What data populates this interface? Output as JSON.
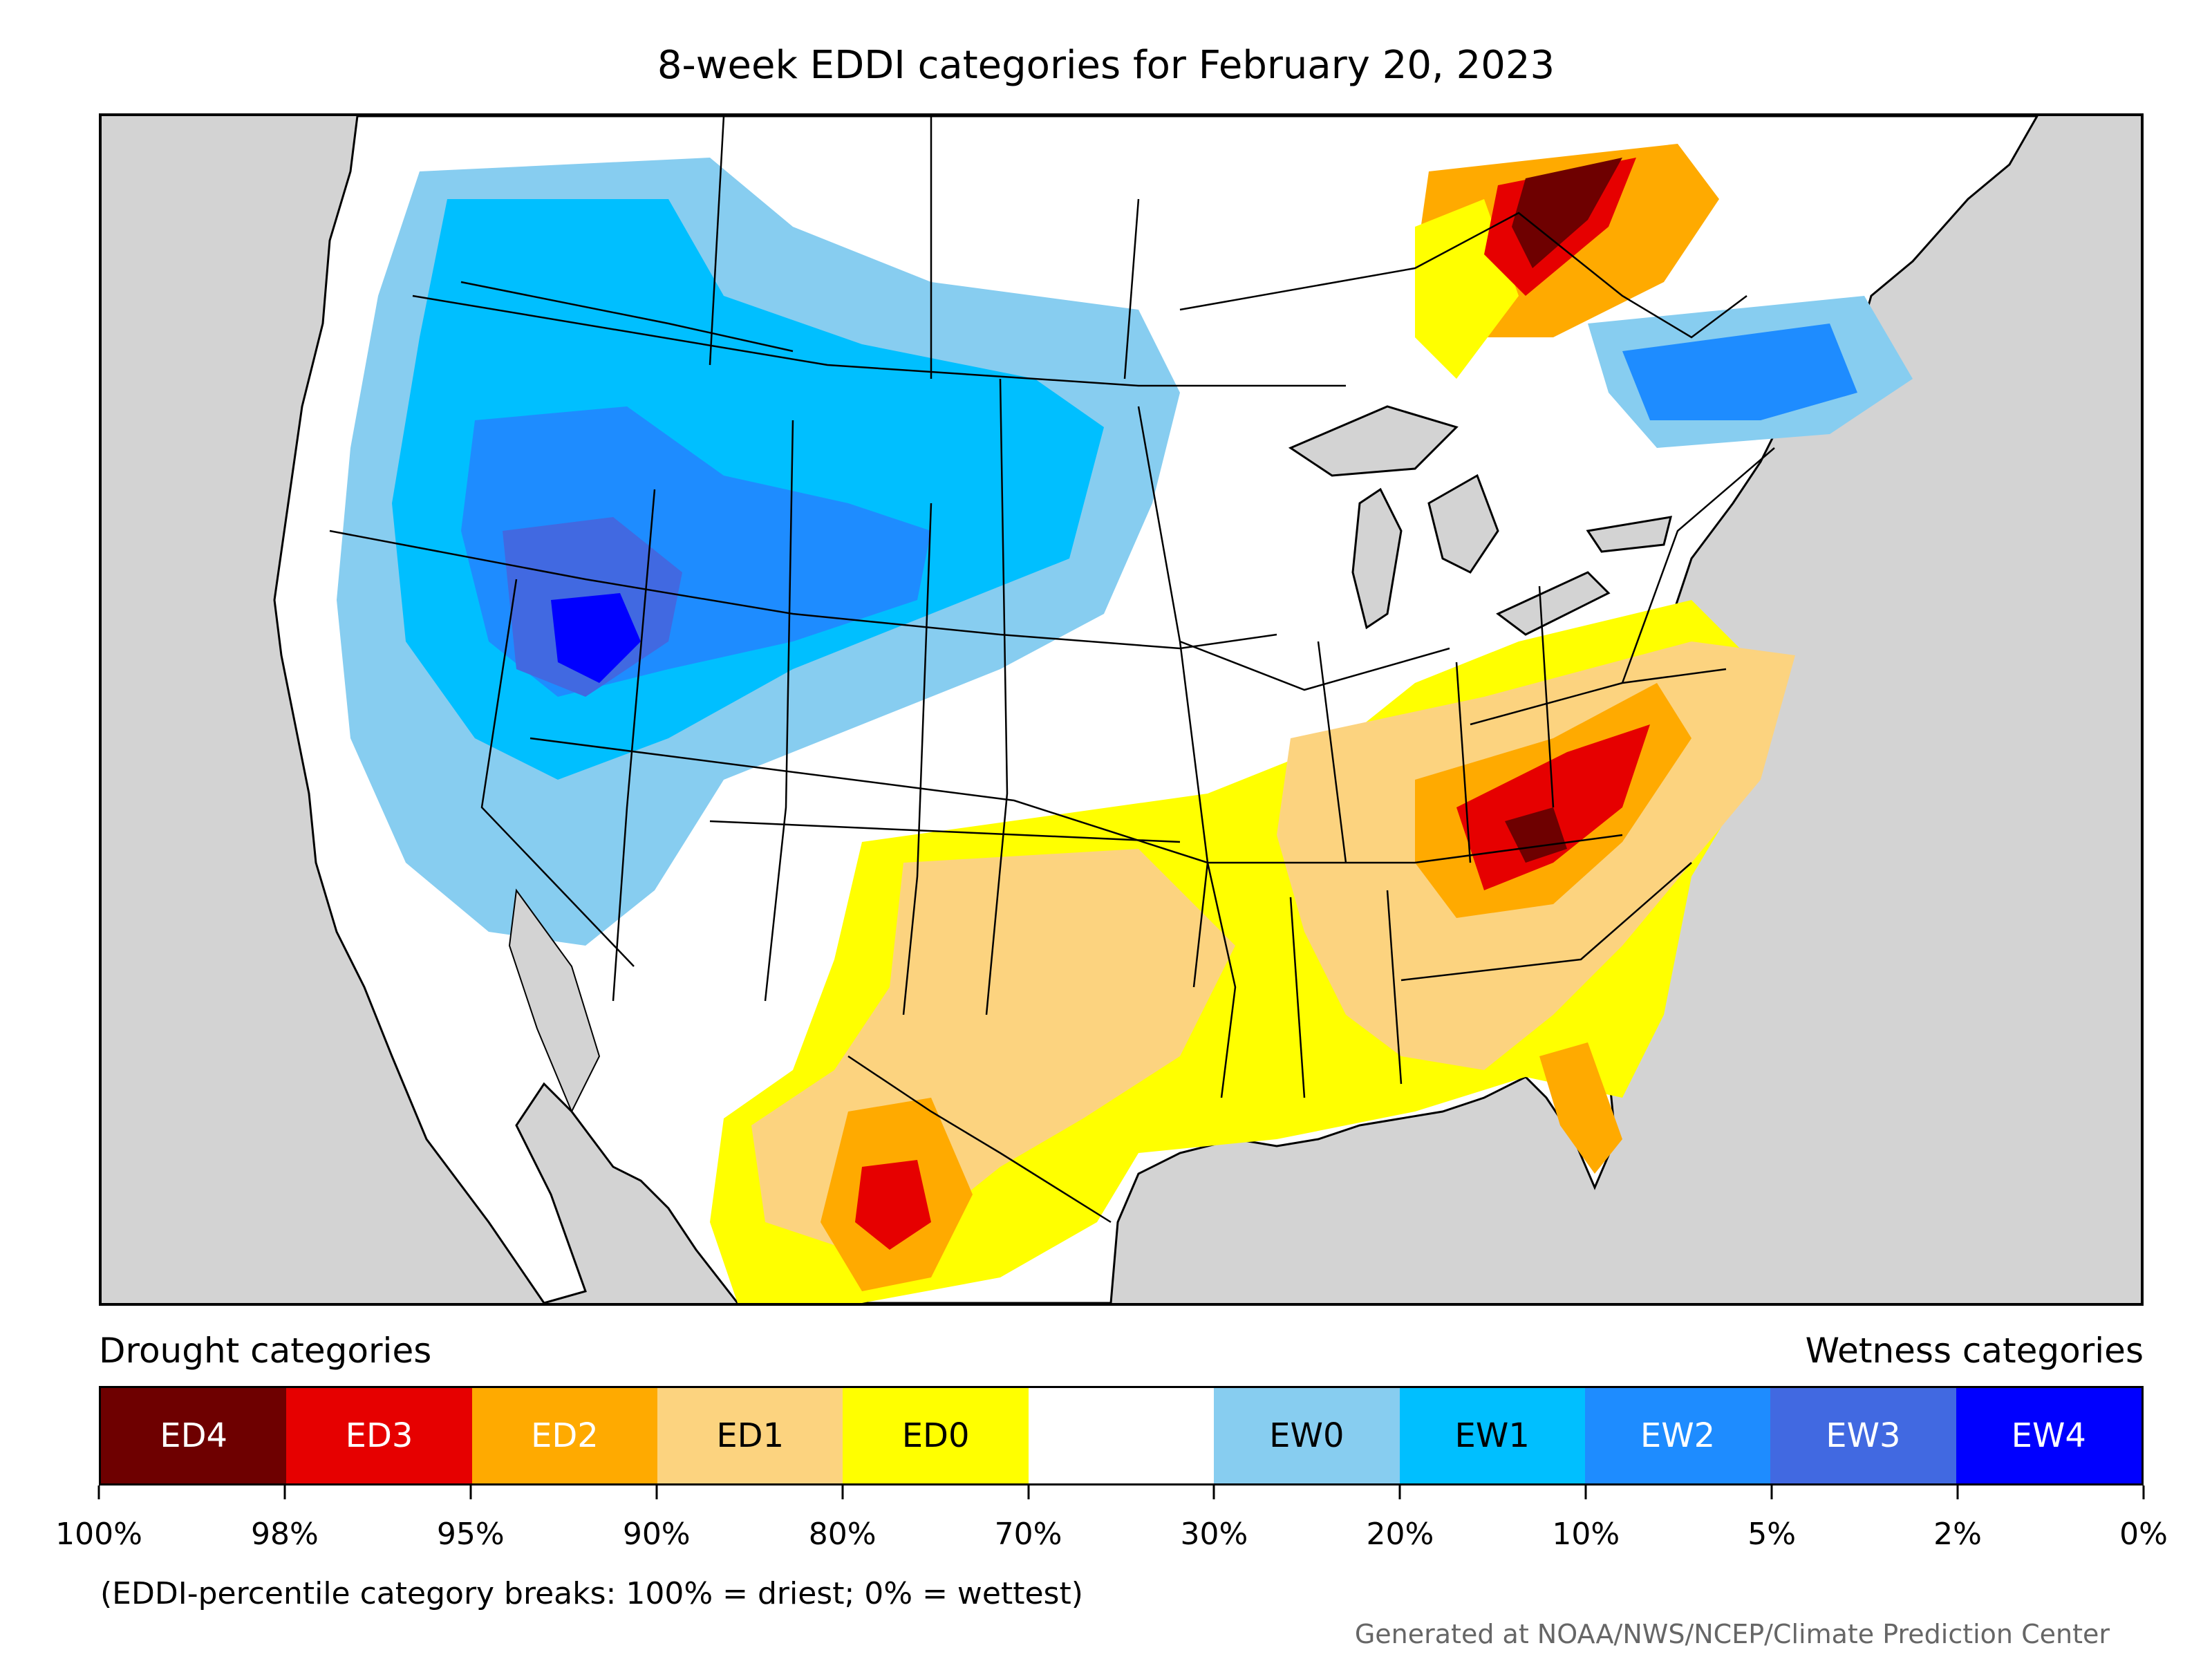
{
  "title": "8-week EDDI categories for February 20, 2023",
  "legend": {
    "drought_heading": "Drought categories",
    "wetness_heading": "Wetness categories",
    "categories": [
      {
        "label": "ED4",
        "color": "#6e0000",
        "text_color": "#ffffff"
      },
      {
        "label": "ED3",
        "color": "#e60000",
        "text_color": "#ffffff"
      },
      {
        "label": "ED2",
        "color": "#ffaa00",
        "text_color": "#ffffff"
      },
      {
        "label": "ED1",
        "color": "#fcd37f",
        "text_color": "#000000"
      },
      {
        "label": "ED0",
        "color": "#ffff00",
        "text_color": "#000000"
      },
      {
        "label": "",
        "color": "#ffffff",
        "text_color": "#000000"
      },
      {
        "label": "EW0",
        "color": "#87cdf0",
        "text_color": "#000000"
      },
      {
        "label": "EW1",
        "color": "#00bfff",
        "text_color": "#000000"
      },
      {
        "label": "EW2",
        "color": "#1e8cff",
        "text_color": "#ffffff"
      },
      {
        "label": "EW3",
        "color": "#4169e1",
        "text_color": "#ffffff"
      },
      {
        "label": "EW4",
        "color": "#0000ff",
        "text_color": "#ffffff"
      }
    ],
    "breaks": [
      "100%",
      "98%",
      "95%",
      "90%",
      "80%",
      "70%",
      "30%",
      "20%",
      "10%",
      "5%",
      "2%",
      "0%"
    ]
  },
  "note": "(EDDI-percentile category breaks: 100% = driest; 0% = wettest)",
  "credit": "Generated at NOAA/NWS/NCEP/Climate Prediction Center",
  "map": {
    "background_color": "#d3d3d3",
    "land_color": "#ffffff",
    "border_color": "#000000"
  }
}
